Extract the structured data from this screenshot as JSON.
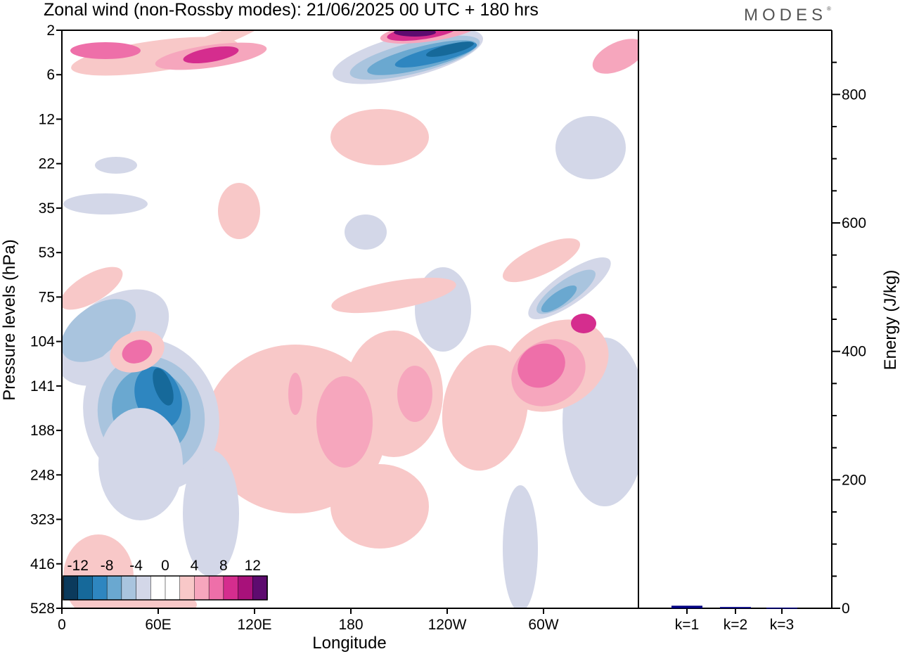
{
  "title": "Zonal wind (non-Rossby modes):  21/06/2025  00 UTC  + 180 hrs",
  "logo": "MODES",
  "chart_data": [
    {
      "type": "heatmap",
      "xlabel": "Longitude",
      "ylabel": "Pressure levels (hPa)",
      "x_ticks": [
        "0",
        "60E",
        "120E",
        "180",
        "120W",
        "60W"
      ],
      "y_ticks": [
        "2",
        "6",
        "12",
        "22",
        "35",
        "53",
        "75",
        "104",
        "141",
        "188",
        "248",
        "323",
        "416",
        "528"
      ],
      "colorbar": {
        "labels": [
          "-12",
          "-8",
          "-4",
          "0",
          "4",
          "8",
          "12"
        ],
        "colors": [
          "#0b3a5c",
          "#16699a",
          "#2e86c0",
          "#6aa8d0",
          "#a9c4de",
          "#d3d7e8",
          "#ffffff",
          "#ffffff",
          "#f8c8c8",
          "#f6a6bd",
          "#ee6fa9",
          "#d52d8e",
          "#a8117a",
          "#5e0b6f"
        ]
      },
      "features": [
        {
          "sign": "negative",
          "lon_range": [
            "30E",
            "80E"
          ],
          "pressure": 150,
          "peak": -10
        },
        {
          "sign": "negative",
          "lon_range": [
            "145W",
            "90W"
          ],
          "pressure": 5,
          "peak": -12
        },
        {
          "sign": "positive",
          "lon_range": [
            "160W",
            "110W"
          ],
          "pressure": 2,
          "peak": 12
        },
        {
          "sign": "positive",
          "lon_range": [
            "90W",
            "30W"
          ],
          "pressure": 130,
          "peak": 8
        },
        {
          "sign": "negative",
          "lon_range": [
            "85W",
            "45W"
          ],
          "pressure": 80,
          "peak": -6
        }
      ]
    },
    {
      "type": "bar",
      "ylabel": "Energy (J/kg)",
      "ylim": [
        0,
        900
      ],
      "y_ticks": [
        "0",
        "200",
        "400",
        "600",
        "800"
      ],
      "categories": [
        "k=1",
        "k=2",
        "k=3"
      ],
      "values": [
        4,
        2,
        1
      ],
      "bar_color": "#000080"
    }
  ]
}
